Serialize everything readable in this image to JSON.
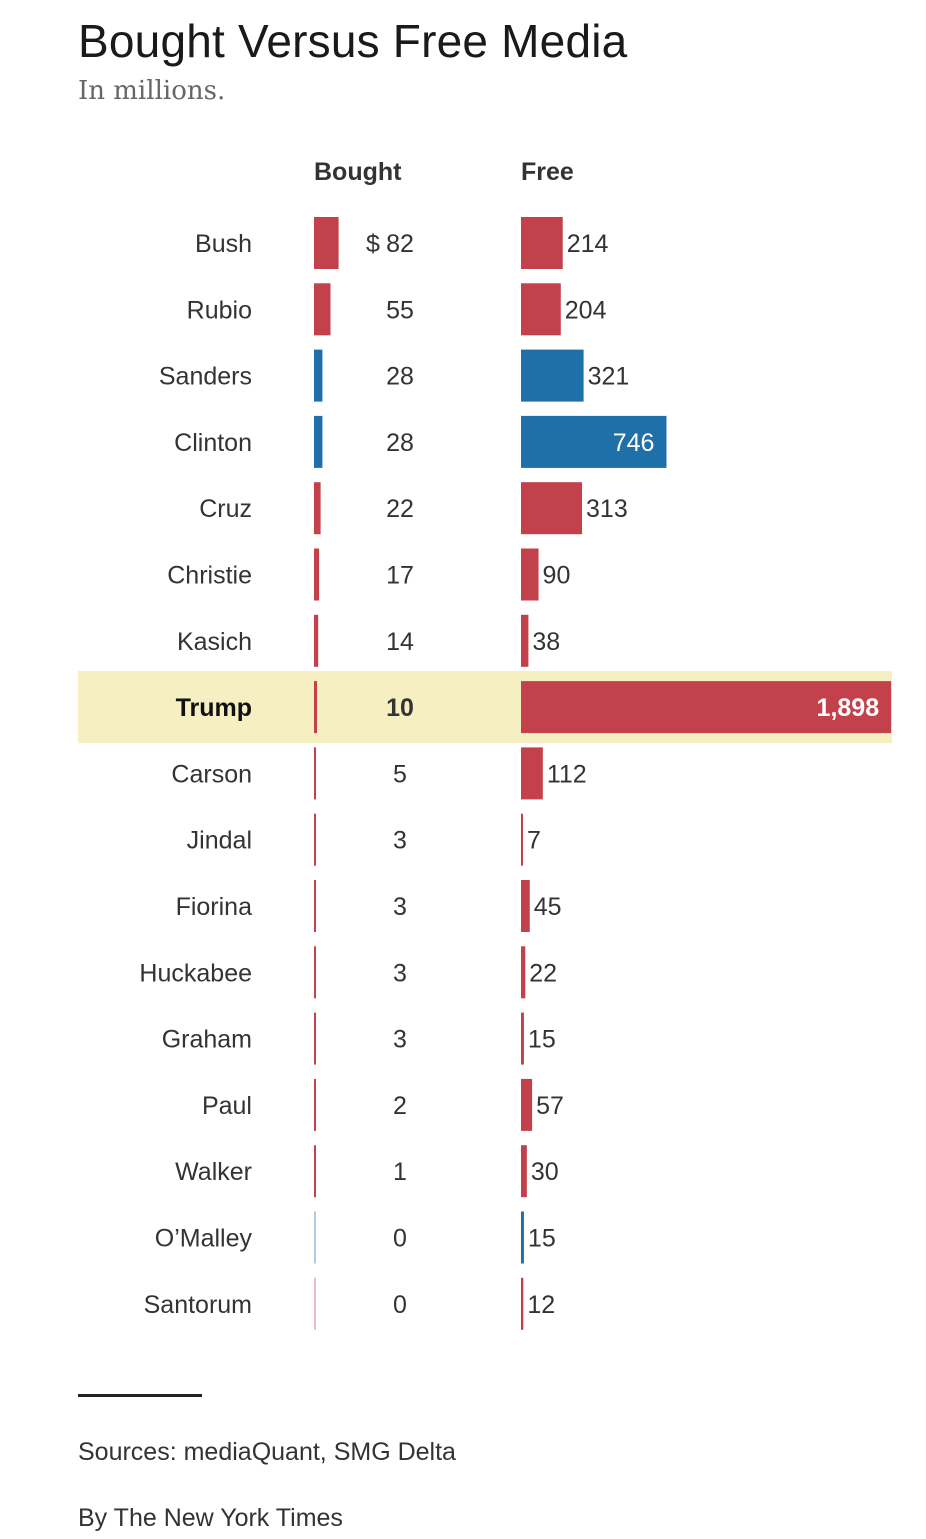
{
  "chart_data": {
    "type": "bar",
    "title": "Bought Versus Free Media",
    "subtitle": "In millions.",
    "series_labels": {
      "bought": "Bought",
      "free": "Free"
    },
    "currency_prefix": "$",
    "highlight": "Trump",
    "colors": {
      "republican": "#c2414b",
      "democrat": "#1f6fa8",
      "highlight_bg": "#f6efc2",
      "free_label_inside": "#ffffff"
    },
    "rows": [
      {
        "name": "Bush",
        "party": "R",
        "bought": 82,
        "free": 214,
        "bought_label": "82",
        "free_label": "214"
      },
      {
        "name": "Rubio",
        "party": "R",
        "bought": 55,
        "free": 204,
        "bought_label": "55",
        "free_label": "204"
      },
      {
        "name": "Sanders",
        "party": "D",
        "bought": 28,
        "free": 321,
        "bought_label": "28",
        "free_label": "321"
      },
      {
        "name": "Clinton",
        "party": "D",
        "bought": 28,
        "free": 746,
        "bought_label": "28",
        "free_label": "746"
      },
      {
        "name": "Cruz",
        "party": "R",
        "bought": 22,
        "free": 313,
        "bought_label": "22",
        "free_label": "313"
      },
      {
        "name": "Christie",
        "party": "R",
        "bought": 17,
        "free": 90,
        "bought_label": "17",
        "free_label": "90"
      },
      {
        "name": "Kasich",
        "party": "R",
        "bought": 14,
        "free": 38,
        "bought_label": "14",
        "free_label": "38"
      },
      {
        "name": "Trump",
        "party": "R",
        "bought": 10,
        "free": 1898,
        "bought_label": "10",
        "free_label": "1,898"
      },
      {
        "name": "Carson",
        "party": "R",
        "bought": 5,
        "free": 112,
        "bought_label": "5",
        "free_label": "112"
      },
      {
        "name": "Jindal",
        "party": "R",
        "bought": 3,
        "free": 7,
        "bought_label": "3",
        "free_label": "7"
      },
      {
        "name": "Fiorina",
        "party": "R",
        "bought": 3,
        "free": 45,
        "bought_label": "3",
        "free_label": "45"
      },
      {
        "name": "Huckabee",
        "party": "R",
        "bought": 3,
        "free": 22,
        "bought_label": "3",
        "free_label": "22"
      },
      {
        "name": "Graham",
        "party": "R",
        "bought": 3,
        "free": 15,
        "bought_label": "3",
        "free_label": "15"
      },
      {
        "name": "Paul",
        "party": "R",
        "bought": 2,
        "free": 57,
        "bought_label": "2",
        "free_label": "57"
      },
      {
        "name": "Walker",
        "party": "R",
        "bought": 1,
        "free": 30,
        "bought_label": "1",
        "free_label": "30"
      },
      {
        "name": "O’Malley",
        "party": "D",
        "bought": 0,
        "free": 15,
        "bought_label": "0",
        "free_label": "15"
      },
      {
        "name": "Santorum",
        "party": "R",
        "bought": 0,
        "free": 12,
        "bought_label": "0",
        "free_label": "12"
      }
    ]
  },
  "footer": {
    "sources": "Sources: mediaQuant, SMG Delta",
    "byline": "By The New York Times"
  }
}
